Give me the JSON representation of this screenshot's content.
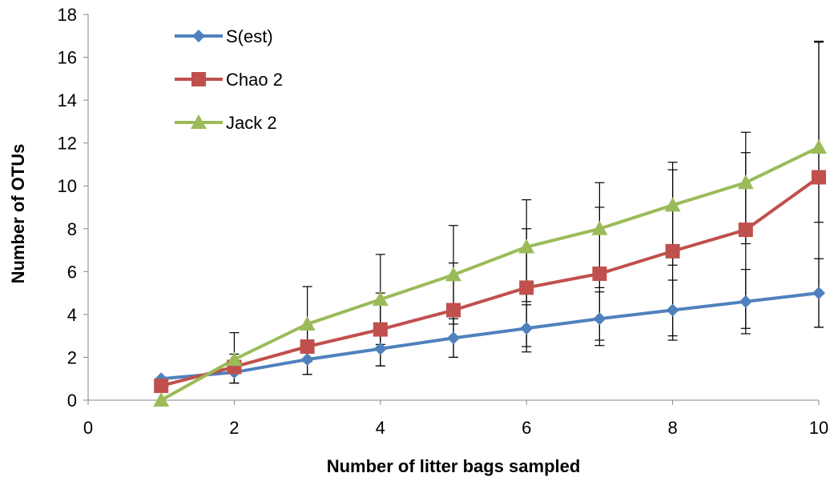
{
  "chart_data": {
    "type": "line",
    "title": "",
    "xlabel": "Number of litter bags sampled",
    "ylabel": "Number of OTUs",
    "xlim": [
      0,
      10
    ],
    "ylim": [
      0,
      18
    ],
    "x_ticks": [
      0,
      2,
      4,
      6,
      8,
      10
    ],
    "y_ticks": [
      0,
      2,
      4,
      6,
      8,
      10,
      12,
      14,
      16,
      18
    ],
    "grid": false,
    "legend_position": "top-left",
    "series": [
      {
        "name": "S(est)",
        "color": "#4F81BD",
        "marker": "diamond",
        "x": [
          1,
          2,
          3,
          4,
          5,
          6,
          7,
          8,
          9,
          10
        ],
        "y": [
          1.0,
          1.3,
          1.9,
          2.4,
          2.9,
          3.35,
          3.8,
          4.2,
          4.6,
          5.0
        ],
        "error_upper": [
          null,
          0.5,
          0.7,
          0.8,
          0.9,
          1.1,
          1.25,
          1.4,
          1.5,
          1.6
        ],
        "error_lower": [
          null,
          0.5,
          0.7,
          0.8,
          0.9,
          1.1,
          1.25,
          1.4,
          1.5,
          1.6
        ]
      },
      {
        "name": "Chao 2",
        "color": "#C0504D",
        "marker": "square",
        "x": [
          1,
          2,
          3,
          4,
          5,
          6,
          7,
          8,
          9,
          10
        ],
        "y": [
          0.67,
          1.55,
          2.5,
          3.3,
          4.2,
          5.25,
          5.9,
          6.95,
          7.95,
          10.4
        ],
        "error_upper": [
          null,
          0.6,
          1.0,
          1.7,
          2.2,
          2.75,
          3.1,
          3.8,
          3.6,
          6.3
        ],
        "error_lower": [
          null,
          0.75,
          1.3,
          1.7,
          2.2,
          2.75,
          3.1,
          3.95,
          4.6,
          7.0
        ]
      },
      {
        "name": "Jack 2",
        "color": "#9BBB59",
        "marker": "triangle",
        "x": [
          1,
          2,
          3,
          4,
          5,
          6,
          7,
          8,
          9,
          10
        ],
        "y": [
          0.0,
          1.9,
          3.55,
          4.7,
          5.85,
          7.15,
          8.0,
          9.1,
          10.15,
          11.8
        ],
        "error_upper": [
          null,
          1.25,
          1.75,
          2.1,
          2.3,
          2.2,
          2.15,
          2.0,
          2.35,
          4.95
        ],
        "error_lower": [
          null,
          1.1,
          1.75,
          2.1,
          2.3,
          2.55,
          2.75,
          2.8,
          2.85,
          3.5
        ]
      }
    ]
  }
}
